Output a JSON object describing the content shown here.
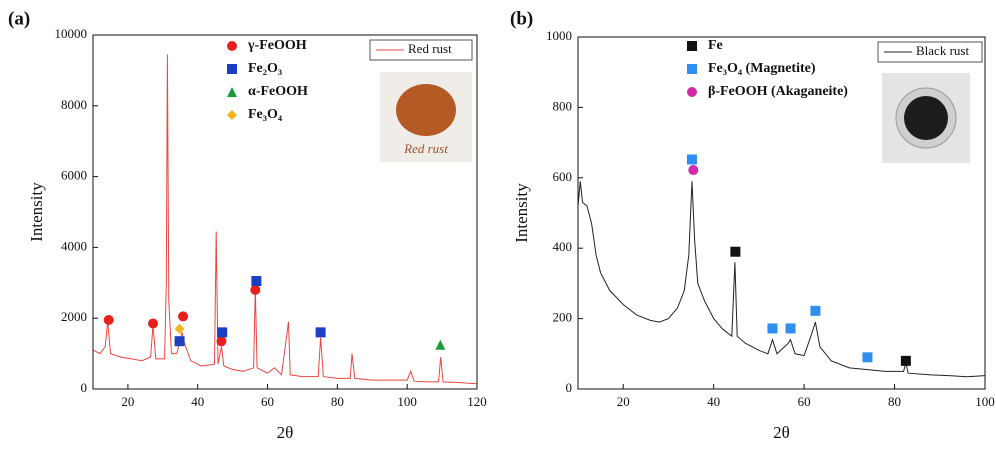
{
  "chart_data": [
    {
      "type": "line",
      "panel": "(a)",
      "xlabel": "2θ",
      "ylabel": "Intensity",
      "xlim": [
        10,
        120
      ],
      "ylim": [
        0,
        10000
      ],
      "xticks": [
        20,
        40,
        60,
        80,
        100,
        120
      ],
      "yticks": [
        0,
        2000,
        4000,
        6000,
        8000,
        10000
      ],
      "inset_label": "Red rust",
      "inset_color": "#a0522d",
      "series": [
        {
          "name": "Red rust",
          "type": "line",
          "color": "#e8483f",
          "x": [
            10,
            12,
            13.5,
            14.2,
            15,
            18,
            21,
            24,
            26.5,
            27.2,
            28,
            30.5,
            31,
            31.3,
            31.7,
            32.5,
            34,
            35.5,
            36.2,
            38,
            41,
            44.8,
            45.3,
            45.8,
            46.8,
            47.5,
            50,
            53,
            56,
            56.5,
            57,
            60,
            62,
            64,
            66,
            66.5,
            70,
            74.5,
            75.2,
            76,
            80,
            83.7,
            84.2,
            85,
            90,
            95,
            100,
            101,
            102,
            106,
            109,
            109.6,
            110.3,
            115,
            120
          ],
          "values": [
            1100,
            1000,
            1200,
            1900,
            1000,
            900,
            850,
            800,
            900,
            1800,
            850,
            850,
            3000,
            9450,
            2500,
            1000,
            1000,
            1600,
            1300,
            800,
            650,
            700,
            4450,
            700,
            1200,
            650,
            550,
            500,
            600,
            2850,
            600,
            450,
            600,
            400,
            1900,
            400,
            350,
            350,
            1450,
            350,
            300,
            300,
            1000,
            300,
            250,
            250,
            250,
            500,
            220,
            200,
            200,
            900,
            200,
            180,
            150
          ]
        },
        {
          "name": "γ-FeOOH",
          "type": "scatter",
          "marker": "circle",
          "color": "#e8201c",
          "x": [
            14.5,
            27.2,
            35.8,
            46.8,
            56.5
          ],
          "values": [
            1950,
            1850,
            2050,
            1350,
            2800
          ]
        },
        {
          "name": "Fe₂O₃",
          "type": "scatter",
          "marker": "square",
          "color": "#1a3fc4",
          "x": [
            34.8,
            47,
            56.8,
            75.2
          ],
          "values": [
            1350,
            1600,
            3050,
            1600
          ]
        },
        {
          "name": "α-FeOOH",
          "type": "scatter",
          "marker": "triangle",
          "color": "#1e9a3a",
          "x": [
            109.5
          ],
          "values": [
            1250
          ]
        },
        {
          "name": "Fe₃O₄",
          "type": "scatter",
          "marker": "diamond",
          "color": "#f2b31c",
          "x": [
            34.8
          ],
          "values": [
            1700
          ]
        }
      ]
    },
    {
      "type": "line",
      "panel": "(b)",
      "xlabel": "2θ",
      "ylabel": "Intensity",
      "xlim": [
        10,
        100
      ],
      "ylim": [
        0,
        1000
      ],
      "xticks": [
        20,
        40,
        60,
        80,
        100
      ],
      "yticks": [
        0,
        200,
        400,
        600,
        800,
        1000
      ],
      "series": [
        {
          "name": "Black rust",
          "type": "line",
          "color": "#222222",
          "x": [
            10,
            10.5,
            11,
            12,
            13,
            14,
            15,
            17,
            20,
            23,
            26,
            28,
            30,
            32,
            33.5,
            34.5,
            35.2,
            35.8,
            36.5,
            38,
            40,
            42,
            44,
            44.7,
            45.2,
            47,
            50,
            52,
            53,
            54,
            56.5,
            57,
            58,
            60,
            61.5,
            62.5,
            63.5,
            66,
            70,
            74,
            78,
            82,
            82.5,
            83,
            88,
            92,
            96,
            100
          ],
          "values": [
            520,
            590,
            530,
            520,
            470,
            380,
            330,
            280,
            240,
            210,
            195,
            190,
            200,
            230,
            280,
            380,
            590,
            420,
            300,
            250,
            200,
            170,
            150,
            360,
            150,
            130,
            110,
            100,
            140,
            100,
            130,
            140,
            100,
            95,
            150,
            190,
            120,
            80,
            60,
            55,
            50,
            50,
            75,
            45,
            40,
            38,
            35,
            38
          ]
        },
        {
          "name": "Fe",
          "type": "scatter",
          "marker": "square",
          "color": "#111111",
          "x": [
            44.8,
            82.5
          ],
          "values": [
            390,
            80
          ]
        },
        {
          "name": "Fe₃O₄ (Magnetite)",
          "type": "scatter",
          "marker": "square",
          "color": "#2f8ff0",
          "x": [
            35.2,
            53,
            57,
            62.5,
            74
          ],
          "values": [
            652,
            172,
            172,
            222,
            90
          ]
        },
        {
          "name": "β-FeOOH (Akaganeite)",
          "type": "scatter",
          "marker": "circle",
          "color": "#d02aa8",
          "x": [
            35.5
          ],
          "values": [
            622
          ]
        }
      ]
    }
  ]
}
